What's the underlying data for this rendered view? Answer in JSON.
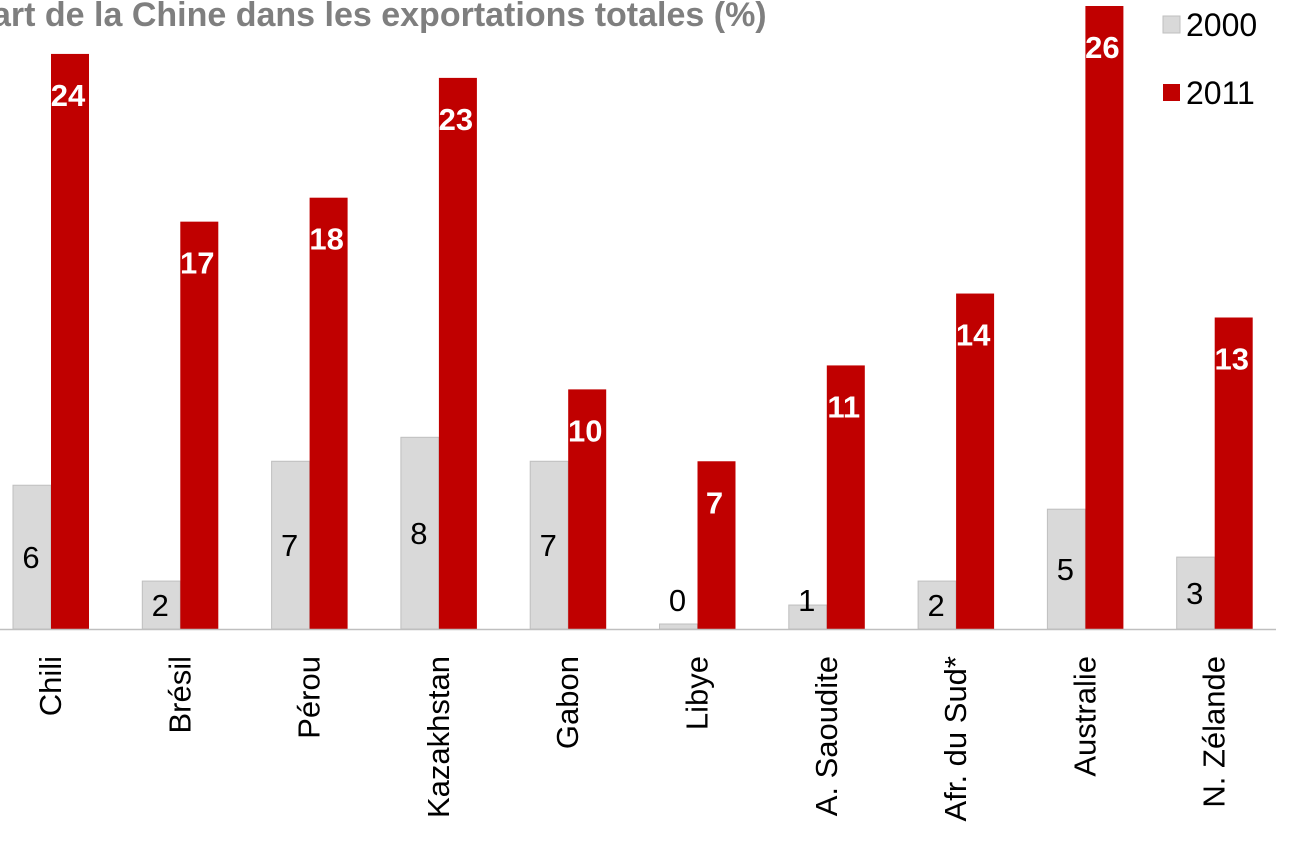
{
  "chart_data": {
    "type": "bar",
    "title": "art de la Chine dans les exportations totales (%)",
    "categories": [
      "Chili",
      "Brésil",
      "Pérou",
      "Kazakhstan",
      "Gabon",
      "Libye",
      "A. Saoudite",
      "Afr. du Sud*",
      "Australie",
      "N. Zélande"
    ],
    "series": [
      {
        "name": "2000",
        "values": [
          6,
          2,
          7,
          8,
          7,
          0,
          1,
          2,
          5,
          3
        ],
        "labels": [
          "6",
          "2",
          "7",
          "8",
          "7",
          "0",
          "1",
          "2",
          "5",
          "3"
        ],
        "color": "#d9d9d9"
      },
      {
        "name": "2011",
        "values": [
          24,
          17,
          18,
          23,
          10,
          7,
          11,
          14,
          26,
          13
        ],
        "labels": [
          "24",
          "17",
          "18",
          "23",
          "10",
          "7",
          "11",
          "14",
          "26",
          "13"
        ],
        "color": "#c00000"
      }
    ],
    "legend_position": "top-right",
    "grid": false,
    "ylim": [
      0,
      26
    ]
  }
}
